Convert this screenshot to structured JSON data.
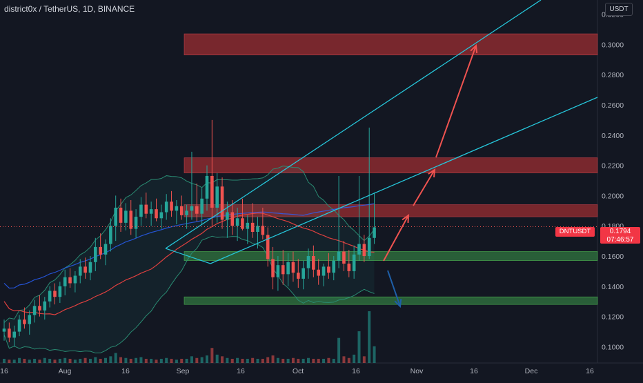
{
  "header": {
    "title": "district0x / TetherUS, 1D, BINANCE",
    "currency_button": "USDT"
  },
  "price_label": {
    "symbol": "DNTUSDT",
    "price": "0.1794",
    "countdown": "07:46:57"
  },
  "colors": {
    "background": "#131722",
    "up": "#26a69a",
    "down": "#ef5350",
    "resistance_zone": "#8b2a2f",
    "support_zone": "#2e6b3c",
    "trendline": "#26c6da",
    "arrow": "#ef5350",
    "projection_arrow": "#1e5fa8"
  },
  "chart_data": {
    "type": "candlestick",
    "symbol": "DNTUSDT",
    "exchange": "BINANCE",
    "interval": "1D",
    "x_ticks": [
      "16",
      "Aug",
      "16",
      "Sep",
      "16",
      "Oct",
      "16",
      "Nov",
      "16",
      "Dec",
      "16"
    ],
    "y_ticks": [
      "0.1000",
      "0.1200",
      "0.1400",
      "0.1600",
      "0.1800",
      "0.2000",
      "0.2200",
      "0.2400",
      "0.2600",
      "0.2800",
      "0.3000",
      "0.3200"
    ],
    "ylim": [
      0.092,
      0.323
    ],
    "last_price": 0.1794,
    "candles": [
      [
        0.11,
        0.118,
        0.104,
        0.112
      ],
      [
        0.112,
        0.116,
        0.103,
        0.106
      ],
      [
        0.106,
        0.114,
        0.1,
        0.11
      ],
      [
        0.11,
        0.121,
        0.107,
        0.118
      ],
      [
        0.118,
        0.126,
        0.112,
        0.115
      ],
      [
        0.115,
        0.124,
        0.108,
        0.121
      ],
      [
        0.121,
        0.131,
        0.116,
        0.127
      ],
      [
        0.127,
        0.134,
        0.12,
        0.124
      ],
      [
        0.124,
        0.133,
        0.118,
        0.13
      ],
      [
        0.13,
        0.14,
        0.126,
        0.137
      ],
      [
        0.137,
        0.142,
        0.128,
        0.133
      ],
      [
        0.133,
        0.143,
        0.129,
        0.14
      ],
      [
        0.14,
        0.151,
        0.134,
        0.146
      ],
      [
        0.146,
        0.152,
        0.139,
        0.142
      ],
      [
        0.142,
        0.15,
        0.136,
        0.147
      ],
      [
        0.147,
        0.158,
        0.142,
        0.153
      ],
      [
        0.153,
        0.159,
        0.145,
        0.149
      ],
      [
        0.149,
        0.16,
        0.144,
        0.156
      ],
      [
        0.156,
        0.172,
        0.15,
        0.166
      ],
      [
        0.166,
        0.175,
        0.158,
        0.161
      ],
      [
        0.161,
        0.171,
        0.154,
        0.168
      ],
      [
        0.168,
        0.185,
        0.163,
        0.18
      ],
      [
        0.18,
        0.2,
        0.17,
        0.192
      ],
      [
        0.192,
        0.198,
        0.176,
        0.182
      ],
      [
        0.182,
        0.195,
        0.177,
        0.19
      ],
      [
        0.19,
        0.197,
        0.174,
        0.178
      ],
      [
        0.178,
        0.191,
        0.172,
        0.186
      ],
      [
        0.186,
        0.199,
        0.18,
        0.194
      ],
      [
        0.194,
        0.202,
        0.185,
        0.188
      ],
      [
        0.188,
        0.196,
        0.18,
        0.191
      ],
      [
        0.191,
        0.198,
        0.183,
        0.185
      ],
      [
        0.185,
        0.194,
        0.178,
        0.189
      ],
      [
        0.189,
        0.201,
        0.184,
        0.196
      ],
      [
        0.196,
        0.203,
        0.186,
        0.19
      ],
      [
        0.19,
        0.197,
        0.181,
        0.193
      ],
      [
        0.193,
        0.2,
        0.184,
        0.187
      ],
      [
        0.187,
        0.194,
        0.178,
        0.19
      ],
      [
        0.19,
        0.229,
        0.184,
        0.193
      ],
      [
        0.193,
        0.208,
        0.183,
        0.188
      ],
      [
        0.188,
        0.205,
        0.181,
        0.198
      ],
      [
        0.198,
        0.22,
        0.19,
        0.213
      ],
      [
        0.213,
        0.25,
        0.18,
        0.192
      ],
      [
        0.192,
        0.215,
        0.182,
        0.206
      ],
      [
        0.206,
        0.212,
        0.178,
        0.184
      ],
      [
        0.184,
        0.196,
        0.172,
        0.189
      ],
      [
        0.189,
        0.197,
        0.174,
        0.18
      ],
      [
        0.18,
        0.192,
        0.17,
        0.185
      ],
      [
        0.185,
        0.198,
        0.177,
        0.178
      ],
      [
        0.178,
        0.187,
        0.168,
        0.182
      ],
      [
        0.182,
        0.195,
        0.172,
        0.176
      ],
      [
        0.176,
        0.186,
        0.165,
        0.18
      ],
      [
        0.18,
        0.192,
        0.171,
        0.174
      ],
      [
        0.174,
        0.179,
        0.153,
        0.158
      ],
      [
        0.158,
        0.166,
        0.138,
        0.146
      ],
      [
        0.146,
        0.16,
        0.137,
        0.154
      ],
      [
        0.154,
        0.164,
        0.141,
        0.148
      ],
      [
        0.148,
        0.162,
        0.14,
        0.156
      ],
      [
        0.156,
        0.163,
        0.143,
        0.149
      ],
      [
        0.149,
        0.158,
        0.139,
        0.145
      ],
      [
        0.145,
        0.157,
        0.138,
        0.152
      ],
      [
        0.152,
        0.165,
        0.145,
        0.16
      ],
      [
        0.16,
        0.167,
        0.146,
        0.151
      ],
      [
        0.151,
        0.158,
        0.141,
        0.147
      ],
      [
        0.147,
        0.155,
        0.14,
        0.153
      ],
      [
        0.153,
        0.162,
        0.145,
        0.149
      ],
      [
        0.149,
        0.16,
        0.144,
        0.157
      ],
      [
        0.157,
        0.213,
        0.152,
        0.163
      ],
      [
        0.163,
        0.17,
        0.15,
        0.155
      ],
      [
        0.155,
        0.164,
        0.146,
        0.15
      ],
      [
        0.15,
        0.167,
        0.145,
        0.161
      ],
      [
        0.161,
        0.213,
        0.157,
        0.168
      ],
      [
        0.168,
        0.174,
        0.156,
        0.16
      ],
      [
        0.16,
        0.245,
        0.158,
        0.172
      ],
      [
        0.172,
        0.202,
        0.168,
        0.179
      ]
    ],
    "volumes": [
      5,
      4,
      4,
      6,
      5,
      4,
      5,
      4,
      6,
      5,
      4,
      5,
      6,
      5,
      4,
      5,
      6,
      5,
      7,
      5,
      6,
      8,
      12,
      7,
      6,
      5,
      6,
      7,
      5,
      5,
      4,
      5,
      6,
      5,
      4,
      5,
      5,
      8,
      6,
      7,
      9,
      18,
      10,
      8,
      6,
      5,
      6,
      5,
      5,
      6,
      5,
      5,
      7,
      9,
      6,
      5,
      5,
      6,
      5,
      5,
      6,
      5,
      5,
      5,
      6,
      5,
      30,
      8,
      6,
      10,
      38,
      8,
      62,
      20
    ],
    "zones": [
      {
        "kind": "resistance",
        "from": 0.293,
        "to": 0.307
      },
      {
        "kind": "resistance",
        "from": 0.215,
        "to": 0.225
      },
      {
        "kind": "resistance",
        "from": 0.186,
        "to": 0.194
      },
      {
        "kind": "support",
        "from": 0.157,
        "to": 0.163
      },
      {
        "kind": "support",
        "from": 0.128,
        "to": 0.133
      }
    ]
  }
}
